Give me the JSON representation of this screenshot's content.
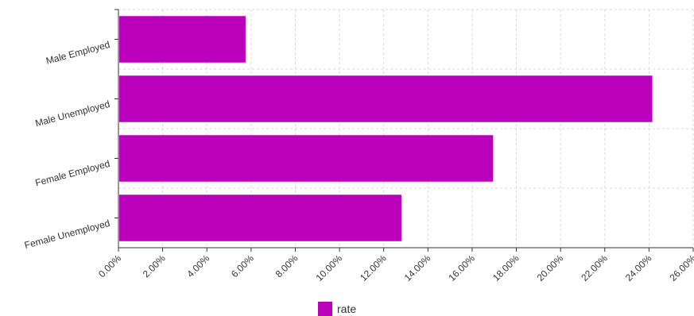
{
  "chart_data": {
    "type": "bar",
    "orientation": "horizontal",
    "categories": [
      "Male Employed",
      "Male Unemployed",
      "Female Employed",
      "Female Unemployed"
    ],
    "series": [
      {
        "name": "rate",
        "values": [
          5.75,
          24.15,
          16.95,
          12.8
        ]
      }
    ],
    "xlim": [
      0,
      26
    ],
    "x_ticks": [
      "0.00%",
      "2.00%",
      "4.00%",
      "6.00%",
      "8.00%",
      "10.00%",
      "12.00%",
      "14.00%",
      "16.00%",
      "18.00%",
      "20.00%",
      "22.00%",
      "24.00%",
      "26.00%"
    ],
    "grid": true,
    "legend_position": "bottom-center",
    "bar_color": "#bb00bb"
  }
}
